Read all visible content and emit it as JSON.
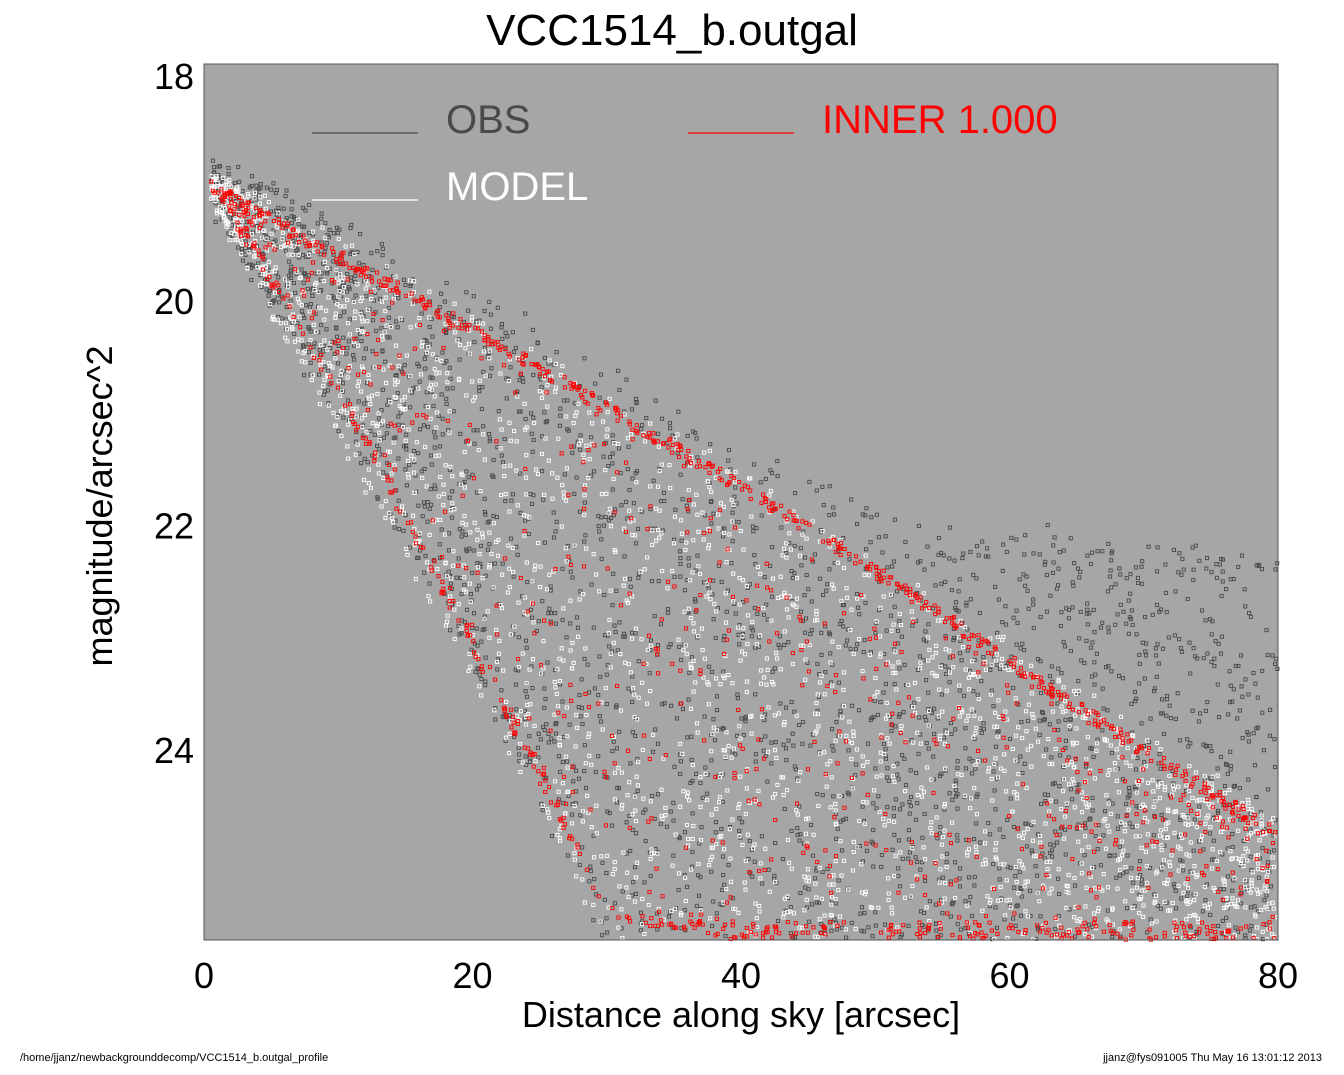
{
  "chart_data": {
    "type": "scatter",
    "title": "VCC1514_b.outgal",
    "xlabel": "Distance along sky [arcsec]",
    "ylabel": "magnitude/arcsec^2",
    "xlim": [
      0,
      80
    ],
    "ylim": [
      25.7,
      17.9
    ],
    "y_inverted": true,
    "x_ticks": [
      "0",
      "20",
      "40",
      "60",
      "80"
    ],
    "y_ticks": [
      "18",
      "20",
      "22",
      "24"
    ],
    "grid": false,
    "background_color": "#a6a6a6",
    "legend": [
      {
        "label": "OBS",
        "color": "#4a4a4a",
        "position": "top-left"
      },
      {
        "label": "INNER  1.000",
        "color": "#ff0000",
        "position": "top-center"
      },
      {
        "label": "MODEL",
        "color": "#ffffff",
        "position": "top-left"
      }
    ],
    "series": [
      {
        "name": "OBS",
        "color": "#4a4a4a",
        "envelope": {
          "x": [
            0,
            10,
            20,
            30,
            40,
            50,
            60,
            70,
            80
          ],
          "y_bright": [
            18.85,
            19.4,
            20.0,
            20.75,
            21.45,
            21.95,
            22.15,
            22.3,
            22.4
          ],
          "y_faint": [
            18.95,
            21.0,
            23.2,
            25.7,
            25.7,
            25.7,
            25.7,
            25.7,
            25.7
          ]
        }
      },
      {
        "name": "MODEL",
        "color": "#ffffff",
        "envelope": {
          "x": [
            0,
            10,
            20,
            30,
            40,
            50,
            60,
            70,
            80
          ],
          "y_bright": [
            18.9,
            19.5,
            20.15,
            20.85,
            21.55,
            22.3,
            23.1,
            23.9,
            24.7
          ],
          "y_faint": [
            18.95,
            21.2,
            23.4,
            25.7,
            25.7,
            25.7,
            25.7,
            25.7,
            25.7
          ]
        }
      },
      {
        "name": "INNER  1.000",
        "color": "#ff0000",
        "envelope": {
          "x": [
            0,
            10,
            20,
            30,
            40,
            50,
            60,
            70,
            80
          ],
          "y_bright": [
            18.9,
            19.55,
            20.2,
            20.9,
            21.6,
            22.35,
            23.15,
            23.95,
            24.7
          ],
          "y_faint": [
            18.9,
            20.9,
            23.15,
            25.5,
            25.7,
            25.7,
            25.7,
            25.7,
            25.7
          ]
        }
      }
    ]
  },
  "footer": {
    "path": "/home/jjanz/newbackgrounddecomp/VCC1514_b.outgal_profile",
    "stamp": "jjanz@fys091005  Thu May 16 13:01:12 2013"
  }
}
